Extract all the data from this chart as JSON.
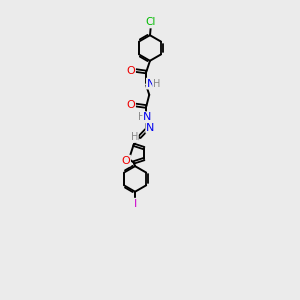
{
  "background_color": "#ebebeb",
  "bond_color": "#000000",
  "atom_colors": {
    "Cl": "#00bb00",
    "O": "#ee0000",
    "N": "#0000ee",
    "H": "#888888",
    "I": "#cc00cc",
    "C": "#000000"
  },
  "figsize": [
    3.0,
    3.0
  ],
  "dpi": 100
}
